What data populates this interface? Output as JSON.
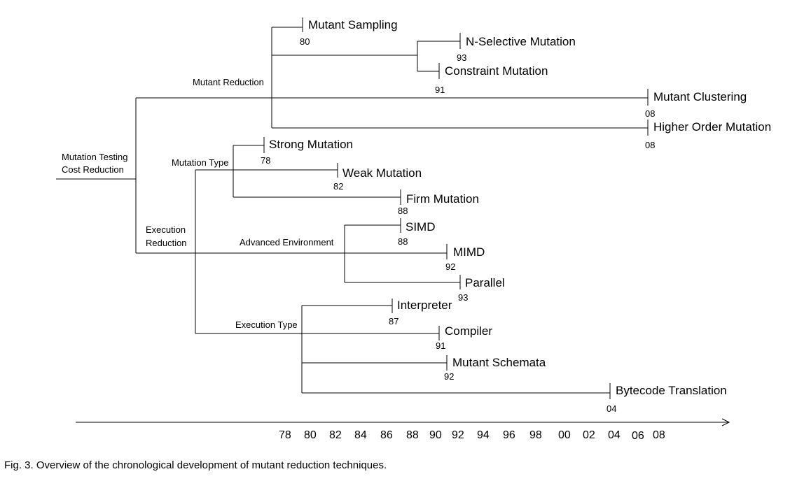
{
  "root": {
    "line1": "Mutation Testing",
    "line2": "Cost Reduction"
  },
  "groups": {
    "mutant_reduction": "Mutant Reduction",
    "execution_reduction": {
      "line1": "Execution",
      "line2": "Reduction"
    },
    "mutation_type": "Mutation Type",
    "advanced_environment": "Advanced Environment",
    "execution_type": "Execution Type"
  },
  "leaves": [
    {
      "label": "Mutant Sampling",
      "year": "80"
    },
    {
      "label": "N-Selective Mutation",
      "year": "93"
    },
    {
      "label": "Constraint Mutation",
      "year": "91"
    },
    {
      "label": "Mutant Clustering",
      "year": "08"
    },
    {
      "label": "Higher Order Mutation",
      "year": "08"
    },
    {
      "label": "Strong Mutation",
      "year": "78"
    },
    {
      "label": "Weak Mutation",
      "year": "82"
    },
    {
      "label": "Firm Mutation",
      "year": "88"
    },
    {
      "label": "SIMD",
      "year": "88"
    },
    {
      "label": "MIMD",
      "year": "92"
    },
    {
      "label": "Parallel",
      "year": "93"
    },
    {
      "label": "Interpreter",
      "year": "87"
    },
    {
      "label": "Compiler",
      "year": "91"
    },
    {
      "label": "Mutant Schemata",
      "year": "92"
    },
    {
      "label": "Bytecode Translation",
      "year": "04"
    }
  ],
  "timeline_ticks": [
    "78",
    "80",
    "82",
    "84",
    "86",
    "88",
    "90",
    "92",
    "94",
    "96",
    "98",
    "00",
    "02",
    "04",
    "06",
    "08"
  ],
  "caption": "Fig. 3. Overview of the chronological development of mutant reduction techniques."
}
